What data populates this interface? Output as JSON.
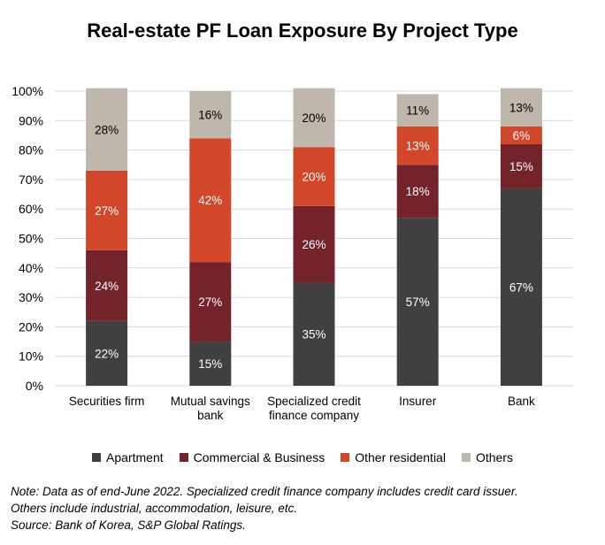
{
  "chart_data": {
    "type": "bar",
    "stacked": true,
    "title": "Real-estate PF Loan Exposure By Project Type",
    "categories": [
      [
        "Securities firm"
      ],
      [
        "Mutual savings",
        "bank"
      ],
      [
        "Specialized credit",
        "finance company"
      ],
      [
        "Insurer"
      ],
      [
        "Bank"
      ]
    ],
    "ylim": [
      0,
      100
    ],
    "yticks": [
      "0%",
      "10%",
      "20%",
      "30%",
      "40%",
      "50%",
      "60%",
      "70%",
      "80%",
      "90%",
      "100%"
    ],
    "grid": true,
    "legend_position": "bottom",
    "series": [
      {
        "name": "Apartment",
        "color": "#404040",
        "values": [
          22,
          15,
          35,
          57,
          67
        ],
        "labels": [
          "22%",
          "15%",
          "35%",
          "57%",
          "67%"
        ]
      },
      {
        "name": "Commercial & Business",
        "color": "#74232b",
        "values": [
          24,
          27,
          26,
          18,
          15
        ],
        "labels": [
          "24%",
          "27%",
          "26%",
          "18%",
          "15%"
        ]
      },
      {
        "name": "Other residential",
        "color": "#d2462a",
        "values": [
          27,
          42,
          20,
          13,
          6
        ],
        "labels": [
          "27%",
          "42%",
          "20%",
          "13%",
          "6%"
        ]
      },
      {
        "name": "Others",
        "color": "#beb8ac",
        "values": [
          28,
          16,
          20,
          11,
          13
        ],
        "labels": [
          "28%",
          "16%",
          "20%",
          "11%",
          "13%"
        ]
      }
    ]
  },
  "notes": [
    "Note: Data as of end-June 2022. Specialized credit finance company includes credit card issuer.",
    "Others include industrial, accommodation, leisure, etc.",
    "Source: Bank of Korea, S&P Global Ratings."
  ]
}
